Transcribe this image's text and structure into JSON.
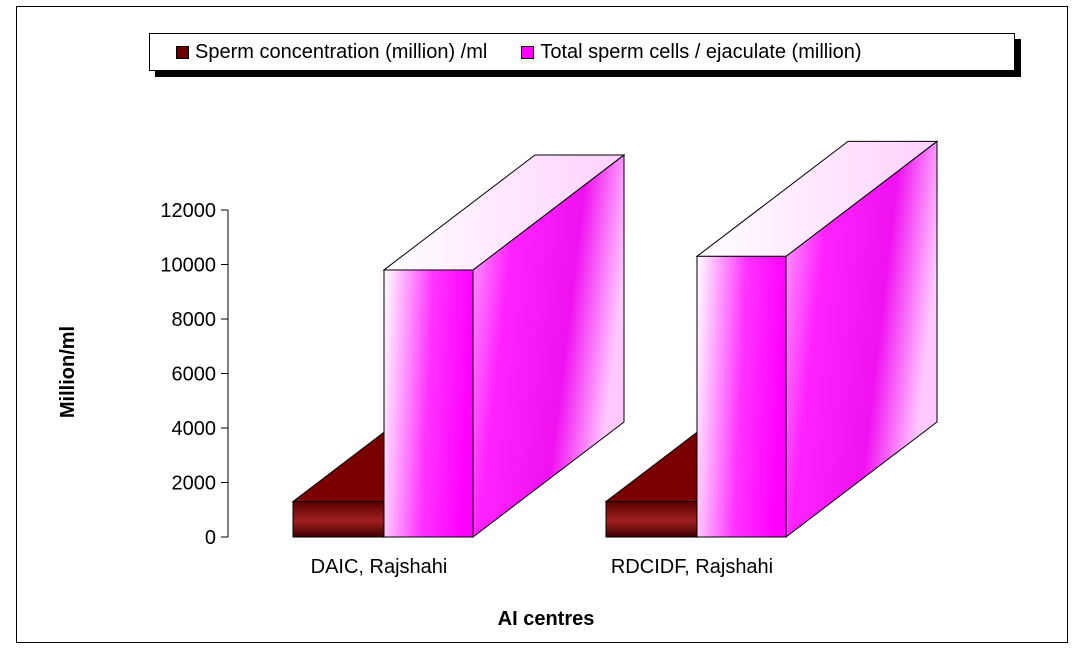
{
  "chart_data": {
    "type": "bar",
    "style": "3d",
    "categories": [
      "DAIC, Rajshahi",
      "RDCIDF, Rajshahi"
    ],
    "series": [
      {
        "name": "Sperm concentration (million) /ml",
        "values": [
          1300,
          1300
        ],
        "color": "#6b0000"
      },
      {
        "name": "Total sperm cells / ejaculate (million)",
        "values": [
          9800,
          10300
        ],
        "color": "#ff00ff"
      }
    ],
    "xlabel": "AI centres",
    "ylabel": "Million/ml",
    "ylim": [
      0,
      12000
    ],
    "yticks": [
      0,
      2000,
      4000,
      6000,
      8000,
      10000,
      12000
    ],
    "legend_position": "top",
    "grid": false
  }
}
